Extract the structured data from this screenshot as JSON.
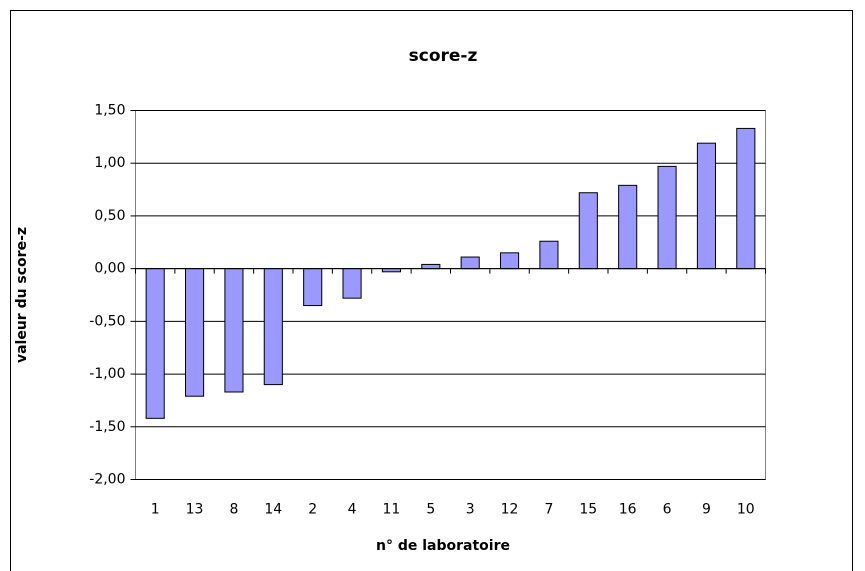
{
  "chart_data": {
    "type": "bar",
    "title": "score-z",
    "x_label": "n° de laboratoire",
    "y_label": "valeur du score-z",
    "categories": [
      "1",
      "13",
      "8",
      "14",
      "2",
      "4",
      "11",
      "5",
      "3",
      "12",
      "7",
      "15",
      "16",
      "6",
      "9",
      "10"
    ],
    "values": [
      -1.42,
      -1.21,
      -1.17,
      -1.1,
      -0.35,
      -0.28,
      -0.03,
      0.04,
      0.11,
      0.15,
      0.26,
      0.72,
      0.79,
      0.97,
      1.19,
      1.33
    ],
    "color": "#9999ff",
    "ylim": [
      -2,
      1.5
    ],
    "yticks": [
      {
        "value": -2,
        "label": "-2,00"
      },
      {
        "value": -1.5,
        "label": "-1,50"
      },
      {
        "value": -1,
        "label": "-1,00"
      },
      {
        "value": -0.5,
        "label": "-0,50"
      },
      {
        "value": 0,
        "label": "0,00"
      },
      {
        "value": 0.5,
        "label": "0,50"
      },
      {
        "value": 1,
        "label": "1,00"
      },
      {
        "value": 1.5,
        "label": "1,50"
      }
    ],
    "grid": true
  }
}
